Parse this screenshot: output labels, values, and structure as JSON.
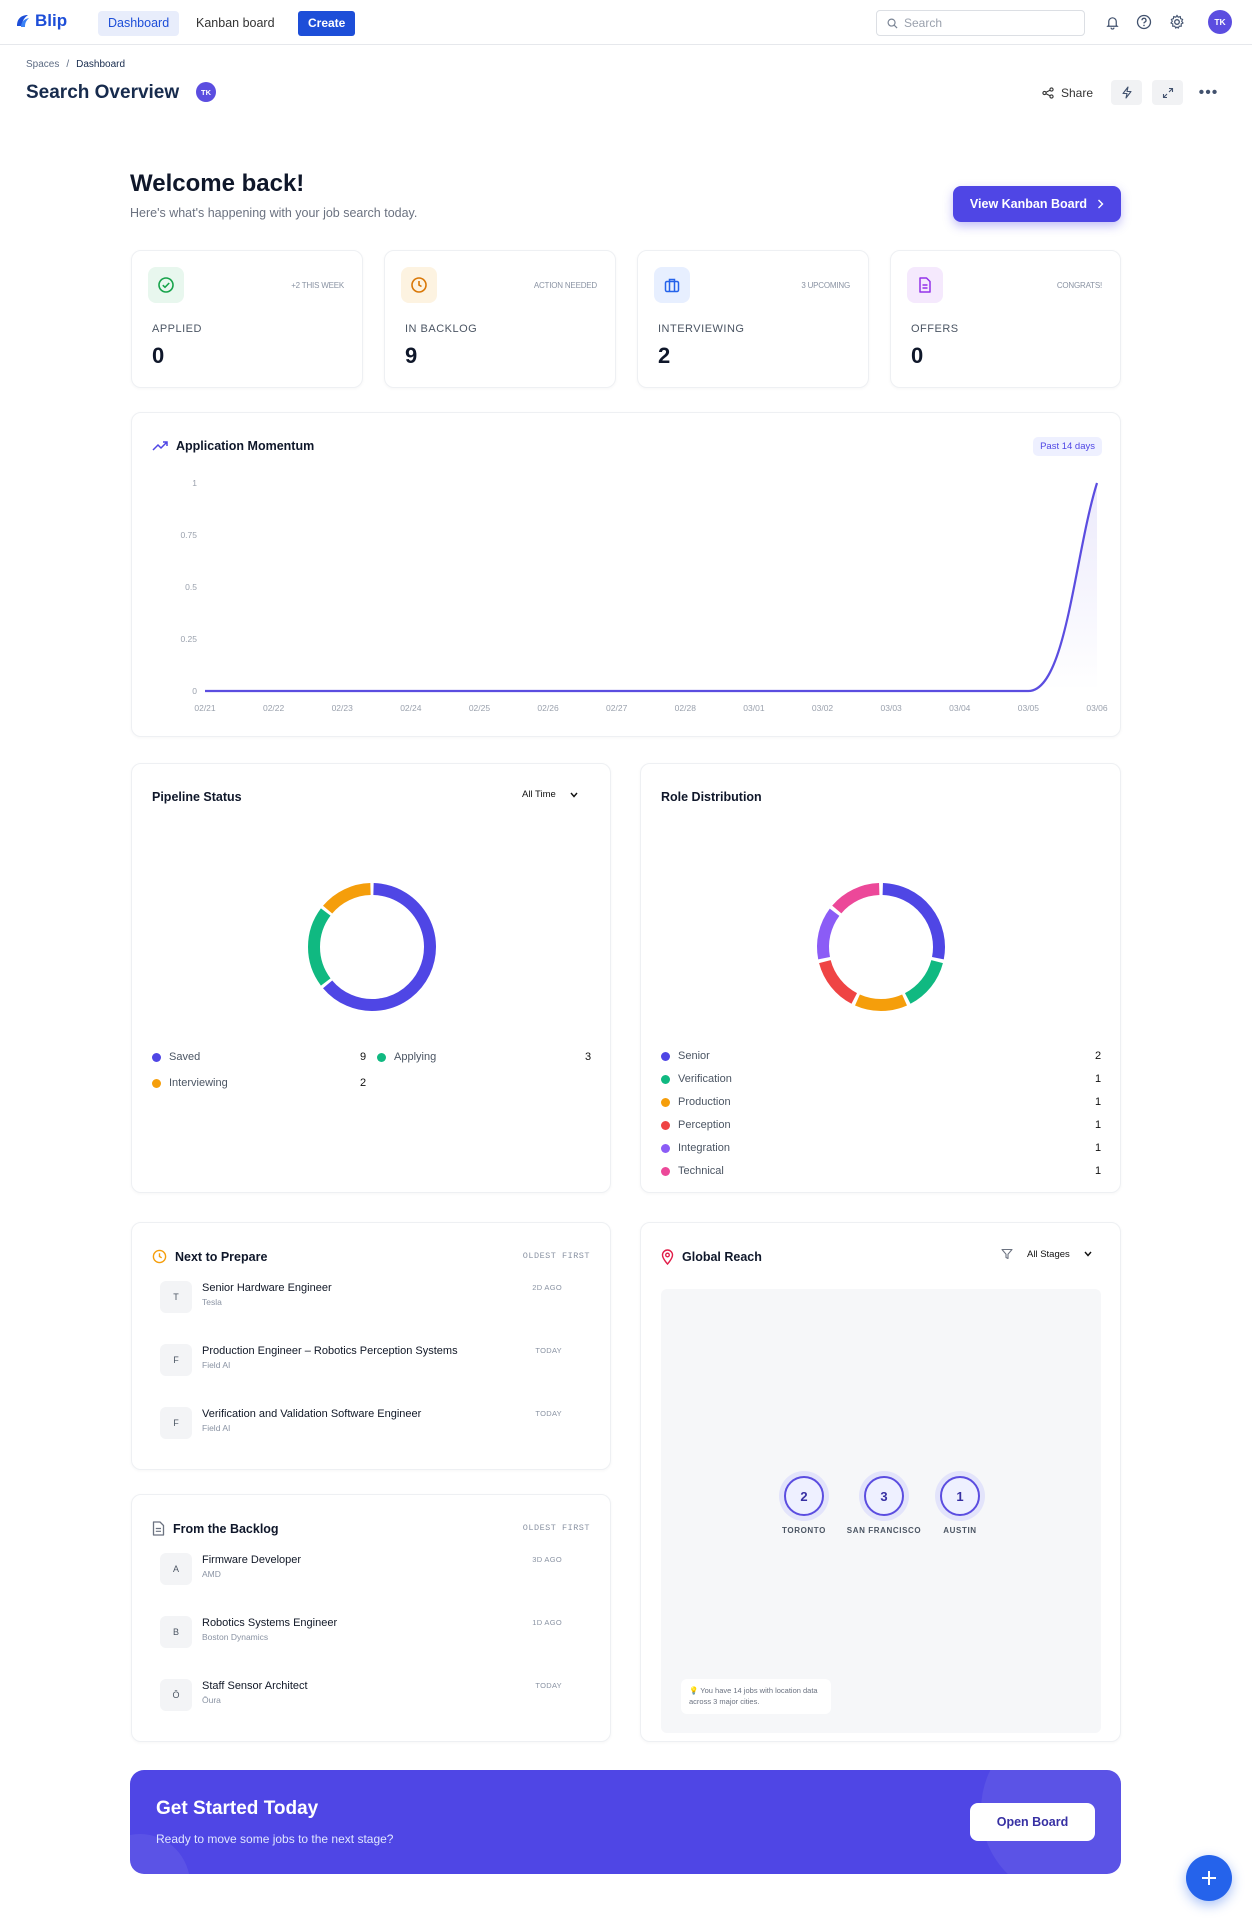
{
  "app": {
    "logo": "Blip",
    "nav": {
      "dashboard": "Dashboard",
      "kanban": "Kanban board",
      "create": "Create"
    },
    "search_placeholder": "Search",
    "user_initials": "TK"
  },
  "header": {
    "breadcrumb": [
      "Spaces",
      "Dashboard"
    ],
    "title": "Search Overview",
    "owner_initials": "TK",
    "share_label": "Share"
  },
  "welcome": {
    "title": "Welcome back!",
    "subtitle": "Here's what's happening with your job search today.",
    "kanban_button": "View Kanban Board"
  },
  "stats": [
    {
      "label": "APPLIED",
      "value": "0",
      "note": "+2 THIS WEEK",
      "icon": "check-circle-icon",
      "color": "#16a34a"
    },
    {
      "label": "IN BACKLOG",
      "value": "9",
      "note": "ACTION NEEDED",
      "icon": "clock-icon",
      "color": "#d97706"
    },
    {
      "label": "INTERVIEWING",
      "value": "2",
      "note": "3 UPCOMING",
      "icon": "briefcase-icon",
      "color": "#2563eb"
    },
    {
      "label": "OFFERS",
      "value": "0",
      "note": "CONGRATS!",
      "icon": "document-icon",
      "color": "#9333ea"
    }
  ],
  "momentum": {
    "title": "Application Momentum",
    "range_label": "Past 14 days"
  },
  "chart_data": [
    {
      "type": "line",
      "title": "Application Momentum",
      "x": [
        "02/21",
        "02/22",
        "02/23",
        "02/24",
        "02/25",
        "02/26",
        "02/27",
        "02/28",
        "03/01",
        "03/02",
        "03/03",
        "03/04",
        "03/05",
        "03/06"
      ],
      "y_ticks": [
        "0",
        "0.25",
        "0.5",
        "0.75",
        "1"
      ],
      "values": [
        0,
        0,
        0,
        0,
        0,
        0,
        0,
        0,
        0,
        0,
        0,
        0,
        0,
        1
      ],
      "ylim": [
        0,
        1
      ],
      "color": "#5b4de0"
    },
    {
      "type": "pie",
      "title": "Pipeline Status",
      "categories": [
        "Saved",
        "Applying",
        "Interviewing"
      ],
      "values": [
        9,
        3,
        2
      ],
      "colors": [
        "#4f46e5",
        "#10b981",
        "#f59e0b"
      ]
    },
    {
      "type": "pie",
      "title": "Role Distribution",
      "categories": [
        "Senior",
        "Verification",
        "Production",
        "Perception",
        "Integration",
        "Technical"
      ],
      "values": [
        2,
        1,
        1,
        1,
        1,
        1
      ],
      "colors": [
        "#4f46e5",
        "#10b981",
        "#f59e0b",
        "#ef4444",
        "#8b5cf6",
        "#ec4899"
      ]
    }
  ],
  "pipeline": {
    "title": "Pipeline Status",
    "filter": "All Time"
  },
  "roles": {
    "title": "Role Distribution"
  },
  "prepare": {
    "title": "Next to Prepare",
    "sort": "OLDEST FIRST",
    "items": [
      {
        "initial": "T",
        "title": "Senior Hardware Engineer",
        "company": "Tesla",
        "age": "2D AGO"
      },
      {
        "initial": "F",
        "title": "Production Engineer – Robotics Perception Systems",
        "company": "Field AI",
        "age": "TODAY"
      },
      {
        "initial": "F",
        "title": "Verification and Validation Software Engineer",
        "company": "Field AI",
        "age": "TODAY"
      }
    ]
  },
  "backlog": {
    "title": "From the Backlog",
    "sort": "OLDEST FIRST",
    "items": [
      {
        "initial": "A",
        "title": "Firmware Developer",
        "company": "AMD",
        "age": "3D AGO"
      },
      {
        "initial": "B",
        "title": "Robotics Systems Engineer",
        "company": "Boston Dynamics",
        "age": "1D AGO"
      },
      {
        "initial": "Ō",
        "title": "Staff Sensor Architect",
        "company": "Ōura",
        "age": "TODAY"
      }
    ]
  },
  "reach": {
    "title": "Global Reach",
    "filter": "All Stages",
    "cities": [
      {
        "count": "2",
        "name": "TORONTO"
      },
      {
        "count": "3",
        "name": "SAN FRANCISCO"
      },
      {
        "count": "1",
        "name": "AUSTIN"
      }
    ],
    "note": "You have 14 jobs with location data across 3 major cities."
  },
  "banner": {
    "title": "Get Started Today",
    "subtitle": "Ready to move some jobs to the next stage?",
    "button": "Open Board"
  }
}
